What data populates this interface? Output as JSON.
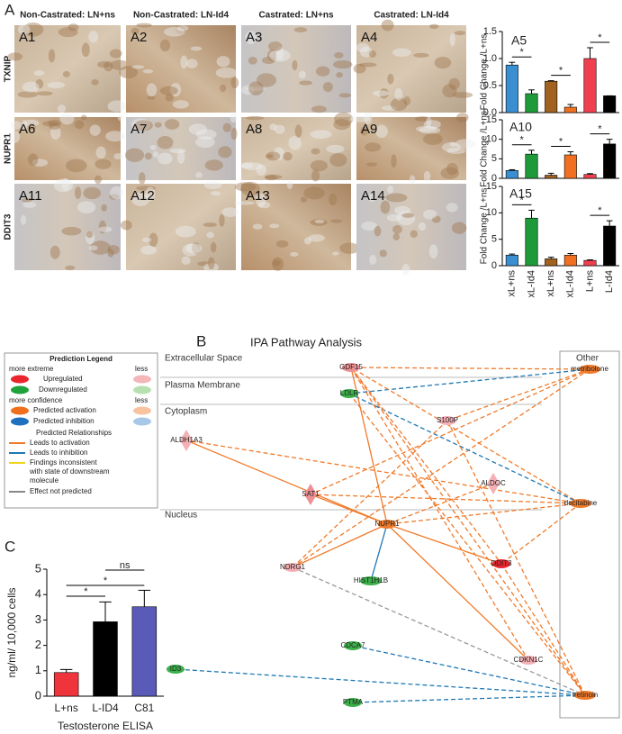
{
  "figure": {
    "panel_labels": [
      "A",
      "B",
      "C"
    ],
    "column_headers": [
      "Non-Castrated: LN+ns",
      "Non-Castrated: LN-Id4",
      "Castrated: LN+ns",
      "Castrated: LN-Id4"
    ],
    "row_labels": [
      "TXNIP",
      "NUPR1",
      "DDIT3"
    ],
    "image_labels": [
      [
        "A1",
        "A2",
        "A3",
        "A4"
      ],
      [
        "A6",
        "A7",
        "A8",
        "A9"
      ],
      [
        "A11",
        "A12",
        "A13",
        "A14"
      ]
    ]
  },
  "chart_data": [
    {
      "type": "bar",
      "title": "A5",
      "ylabel": "Fold Change /L+ns",
      "categories": [
        null,
        null,
        null,
        null,
        null,
        null
      ],
      "values": [
        0.88,
        0.35,
        0.58,
        0.1,
        1.0,
        0.31
      ],
      "errors": [
        0.05,
        0.07,
        0.01,
        0.05,
        0.2,
        0
      ],
      "colors": [
        "#3a8fd1",
        "#1e9a3a",
        "#a0621e",
        "#f07020",
        "#f04050",
        "#000000"
      ],
      "ylim": [
        0,
        1.5
      ],
      "yticks": [
        {
          "value": 0,
          "label": "0.0"
        },
        {
          "value": 0.5,
          "label": "0.5"
        },
        {
          "value": 1,
          "label": "1.0"
        },
        {
          "value": 1.5,
          "label": "1.5"
        }
      ],
      "annotations": [
        "*",
        "*",
        "*"
      ]
    },
    {
      "type": "bar",
      "title": "A10",
      "ylabel": "Fold Change /L+ns",
      "categories": [
        null,
        null,
        null,
        null,
        null,
        null
      ],
      "values": [
        2,
        6.2,
        0.8,
        6,
        1,
        8.8
      ],
      "errors": [
        0.2,
        1,
        0.5,
        0.8,
        0.2,
        1.2
      ],
      "colors": [
        "#3a8fd1",
        "#1e9a3a",
        "#a0621e",
        "#f07020",
        "#f04050",
        "#000000"
      ],
      "ylim": [
        0,
        15
      ],
      "yticks": [
        0,
        5,
        10,
        15
      ],
      "annotations": [
        "*",
        "*",
        "*"
      ]
    },
    {
      "type": "bar",
      "title": "A15",
      "ylabel": "Fold Change /L+ns",
      "categories": [
        "xL+ns",
        "xL-Id4",
        "xL+ns",
        "xL-Id4",
        "L+ns",
        "L-Id4"
      ],
      "category_colors": [
        "#2a9ad8",
        "#1e9a3a",
        "#b03a2a",
        "#c0402a",
        "#f03040",
        "#000000"
      ],
      "values": [
        2,
        9,
        1.3,
        2,
        1,
        7.5
      ],
      "errors": [
        0.2,
        1.5,
        0.3,
        0.3,
        0.1,
        1
      ],
      "colors": [
        "#3a8fd1",
        "#1e9a3a",
        "#a0621e",
        "#f07020",
        "#f04050",
        "#000000"
      ],
      "ylim": [
        0,
        15
      ],
      "yticks": [
        0,
        5,
        10,
        15
      ],
      "annotations": [
        "*",
        "*"
      ]
    },
    {
      "type": "bar",
      "ylabel": "ng/ml/ 10,000 cells",
      "xlabel": "Testosterone ELISA",
      "categories": [
        "L+ns",
        "L-ID4",
        "C81"
      ],
      "values": [
        0.93,
        2.93,
        3.52
      ],
      "errors": [
        0.12,
        0.78,
        0.65
      ],
      "colors": [
        "#f0343c",
        "#000000",
        "#5a5ab8"
      ],
      "ylim": [
        0,
        5
      ],
      "yticks": [
        0,
        1,
        2,
        3,
        4,
        5
      ],
      "annotations": [
        "*",
        "*",
        "ns"
      ]
    }
  ],
  "network": {
    "title": "IPA Pathway Analysis",
    "compartments": [
      "Extracellular Space",
      "Plasma Membrane",
      "Cytoplasm",
      "Nucleus"
    ],
    "other_label": "Other",
    "nodes": [
      {
        "label": "GDF15",
        "kind": "up_mid"
      },
      {
        "label": "metribolone",
        "kind": "activation"
      },
      {
        "label": "LDLR",
        "kind": "down"
      },
      {
        "label": "S100P",
        "kind": "up"
      },
      {
        "label": "ALDH1A3",
        "kind": "up",
        "shape": "diamond"
      },
      {
        "label": "ALDOC",
        "kind": "up",
        "shape": "diamond"
      },
      {
        "label": "SAT1",
        "kind": "up_mid",
        "shape": "diamond"
      },
      {
        "label": "decitabine",
        "kind": "activation"
      },
      {
        "label": "NUPR1",
        "kind": "activation"
      },
      {
        "label": "NDRG1",
        "kind": "up"
      },
      {
        "label": "HIST1H1B",
        "kind": "down"
      },
      {
        "label": "DDIT3",
        "kind": "up_strong"
      },
      {
        "label": "CDCA7",
        "kind": "down"
      },
      {
        "label": "CDKN1C",
        "kind": "up"
      },
      {
        "label": "ID3",
        "kind": "down"
      },
      {
        "label": "PTMA",
        "kind": "down"
      },
      {
        "label": "tretinoin",
        "kind": "activation"
      }
    ],
    "legend": {
      "title": "Prediction Legend",
      "extreme": "more extreme",
      "less": "less",
      "up": "Upregulated",
      "down": "Downregulated",
      "confidence": "more confidence",
      "less2": "less",
      "activation": "Predicted activation",
      "inhibition": "Predicted inhibition",
      "relationships": "Predicted Relationships",
      "r_act": "Leads to activation",
      "r_inh": "Leads to inhibition",
      "r_inc": [
        "Findings inconsistent",
        "with state of downstream",
        "molecule"
      ],
      "r_none": "Effect not predicted"
    }
  }
}
